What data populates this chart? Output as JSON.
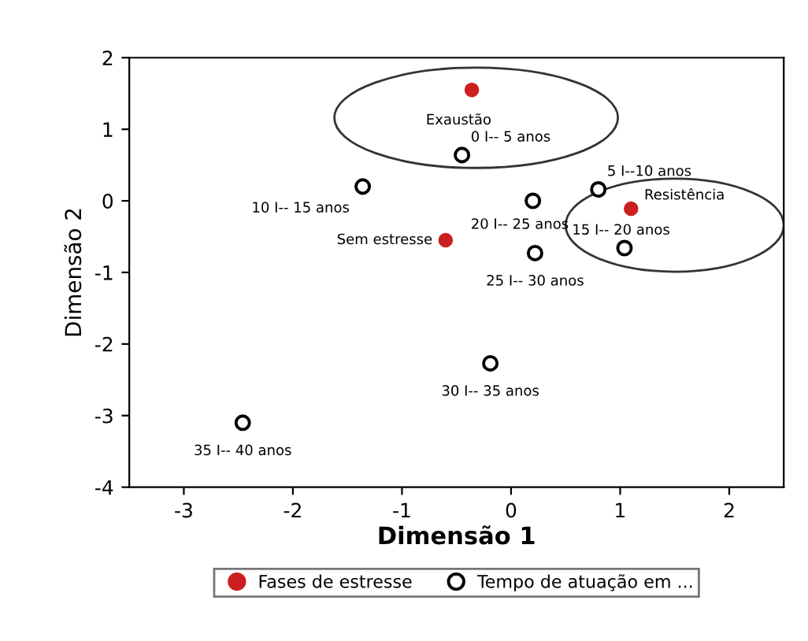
{
  "chart_data": {
    "type": "scatter",
    "xlabel": "Dimensão 1",
    "ylabel": "Dimensão 2",
    "xlim": [
      -3.5,
      2.5
    ],
    "ylim": [
      -4,
      2
    ],
    "xticks": [
      -3,
      -2,
      -1,
      0,
      1,
      2
    ],
    "yticks": [
      -4,
      -3,
      -2,
      -1,
      0,
      1,
      2
    ],
    "grid": false,
    "legend": "bottom",
    "marker": "circle",
    "series": [
      {
        "name": "Fases de estresse",
        "color": "#cc1f1f",
        "x": [
          -0.36,
          -0.6,
          1.1
        ],
        "values": [
          1.55,
          -0.55,
          -0.11
        ]
      },
      {
        "name": "Tempo de atuação em ...",
        "color": "#000000",
        "x": [
          -0.45,
          0.8,
          -1.36,
          1.04,
          0.2,
          0.22,
          -0.19,
          -2.46
        ],
        "values": [
          0.64,
          0.16,
          0.2,
          -0.66,
          0.0,
          -0.73,
          -2.27,
          -3.1
        ]
      }
    ],
    "annotations": [
      {
        "text": "Exaustão",
        "x": -0.36,
        "y": 1.55
      },
      {
        "text": "Sem estresse",
        "x": -0.6,
        "y": -0.55
      },
      {
        "text": "Resistência",
        "x": 1.1,
        "y": -0.11
      },
      {
        "text": "0 I-- 5 anos",
        "x": -0.45,
        "y": 0.64
      },
      {
        "text": "5 I--10 anos",
        "x": 0.8,
        "y": 0.16
      },
      {
        "text": "10 I-- 15 anos",
        "x": -1.36,
        "y": 0.2
      },
      {
        "text": "15 I-- 20 anos",
        "x": 1.04,
        "y": -0.66
      },
      {
        "text": "20 I-- 25 anos",
        "x": 0.2,
        "y": 0.0
      },
      {
        "text": "25 I-- 30 anos",
        "x": 0.22,
        "y": -0.73
      },
      {
        "text": "30 I-- 35 anos",
        "x": -0.19,
        "y": -2.27
      },
      {
        "text": "35 I-- 40 anos",
        "x": -2.46,
        "y": -3.1
      }
    ]
  }
}
